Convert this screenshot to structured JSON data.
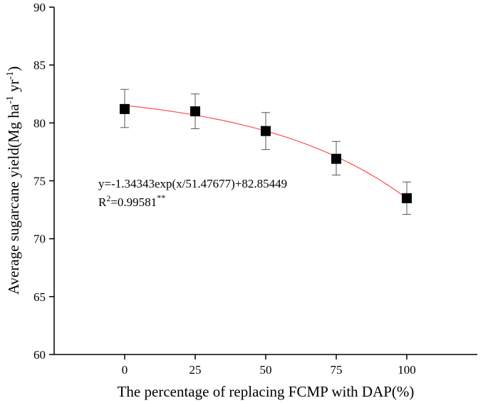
{
  "chart_data": {
    "type": "scatter",
    "xlabel": "The percentage of replacing FCMP with DAP(%)",
    "ylabel": {
      "base": "Average sugarcane yield(Mg ha",
      "sup1": "-1",
      "mid": " yr",
      "sup2": "-1",
      "end": ")"
    },
    "xlim": [
      -25,
      125
    ],
    "ylim": [
      60,
      90
    ],
    "x_ticks": [
      "0",
      "25",
      "50",
      "75",
      "100"
    ],
    "x_tick_values": [
      0,
      25,
      50,
      75,
      100
    ],
    "y_ticks": [
      "60",
      "65",
      "70",
      "75",
      "80",
      "85",
      "90"
    ],
    "y_tick_values": [
      60,
      65,
      70,
      75,
      80,
      85,
      90
    ],
    "points": [
      {
        "x": 0,
        "y": 81.2,
        "err_low": 79.6,
        "err_high": 82.9
      },
      {
        "x": 25,
        "y": 81.0,
        "err_low": 79.5,
        "err_high": 82.5
      },
      {
        "x": 50,
        "y": 79.3,
        "err_low": 77.7,
        "err_high": 80.9
      },
      {
        "x": 75,
        "y": 76.9,
        "err_low": 75.5,
        "err_high": 78.4
      },
      {
        "x": 100,
        "y": 73.5,
        "err_low": 72.1,
        "err_high": 74.9
      }
    ],
    "fit": {
      "a": -1.34343,
      "b": 51.47677,
      "c": 82.85449,
      "x_range": [
        0,
        100
      ]
    },
    "annotation": {
      "equation": "y=-1.34343exp(x/51.47677)+82.85449",
      "r2_prefix": "R",
      "r2_sup": "2",
      "r2_value": "=0.99581",
      "r2_sig": "**"
    },
    "colors": {
      "fit_line": "#ff4d4d",
      "marker": "#000000",
      "axis": "#000000",
      "error_bar": "#555555"
    },
    "grid": false
  }
}
